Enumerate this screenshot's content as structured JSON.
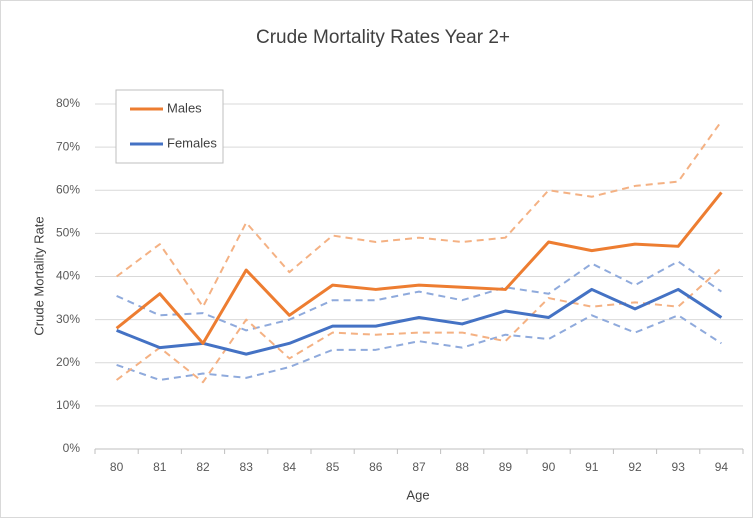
{
  "chart_data": {
    "type": "line",
    "title": "Crude Mortality Rates Year 2+",
    "x_label": "Age",
    "y_label": "Crude Mortality Rate",
    "categories": [
      "80",
      "81",
      "82",
      "83",
      "84",
      "85",
      "86",
      "87",
      "88",
      "89",
      "90",
      "91",
      "92",
      "93",
      "94"
    ],
    "series": [
      {
        "name": "Males",
        "color": "#ed7d31",
        "dashed": false,
        "values": [
          28,
          36,
          24.5,
          41.5,
          31,
          38,
          37,
          38,
          37.5,
          37,
          48,
          46,
          47.5,
          47,
          59.5
        ]
      },
      {
        "name": "Females",
        "color": "#4472c4",
        "dashed": false,
        "values": [
          27.5,
          23.5,
          24.5,
          22,
          24.5,
          28.5,
          28.5,
          30.5,
          29,
          32,
          30.5,
          37,
          32.5,
          37,
          30.5
        ]
      },
      {
        "color": "#f4b183",
        "dashed": true,
        "values": [
          40,
          47.5,
          33,
          52.5,
          41,
          49.5,
          48,
          49,
          48,
          49,
          60,
          58.5,
          61,
          62,
          76
        ]
      },
      {
        "color": "#f4b183",
        "dashed": true,
        "values": [
          16,
          23.5,
          15.5,
          30,
          21,
          27,
          26.5,
          27,
          27,
          25,
          35,
          33,
          34,
          33,
          42
        ]
      },
      {
        "color": "#8faadc",
        "dashed": true,
        "values": [
          35.5,
          31,
          31.5,
          27.5,
          30,
          34.5,
          34.5,
          36.5,
          34.5,
          37.5,
          36,
          43,
          38,
          43.5,
          36.5
        ]
      },
      {
        "color": "#8faadc",
        "dashed": true,
        "values": [
          19.5,
          16,
          17.5,
          16.5,
          19,
          23,
          23,
          25,
          23.5,
          26.5,
          25.5,
          31,
          27,
          31,
          24.5
        ]
      }
    ],
    "ylim": [
      0,
      80
    ],
    "yticks": [
      {
        "value": 0,
        "label": "0%"
      },
      {
        "value": 10,
        "label": "10%"
      },
      {
        "value": 20,
        "label": "20%"
      },
      {
        "value": 30,
        "label": "30%"
      },
      {
        "value": 40,
        "label": "40%"
      },
      {
        "value": 50,
        "label": "50%"
      },
      {
        "value": 60,
        "label": "60%"
      },
      {
        "value": 70,
        "label": "70%"
      },
      {
        "value": 80,
        "label": "80%"
      }
    ],
    "grid": true,
    "legend": "top-left"
  }
}
